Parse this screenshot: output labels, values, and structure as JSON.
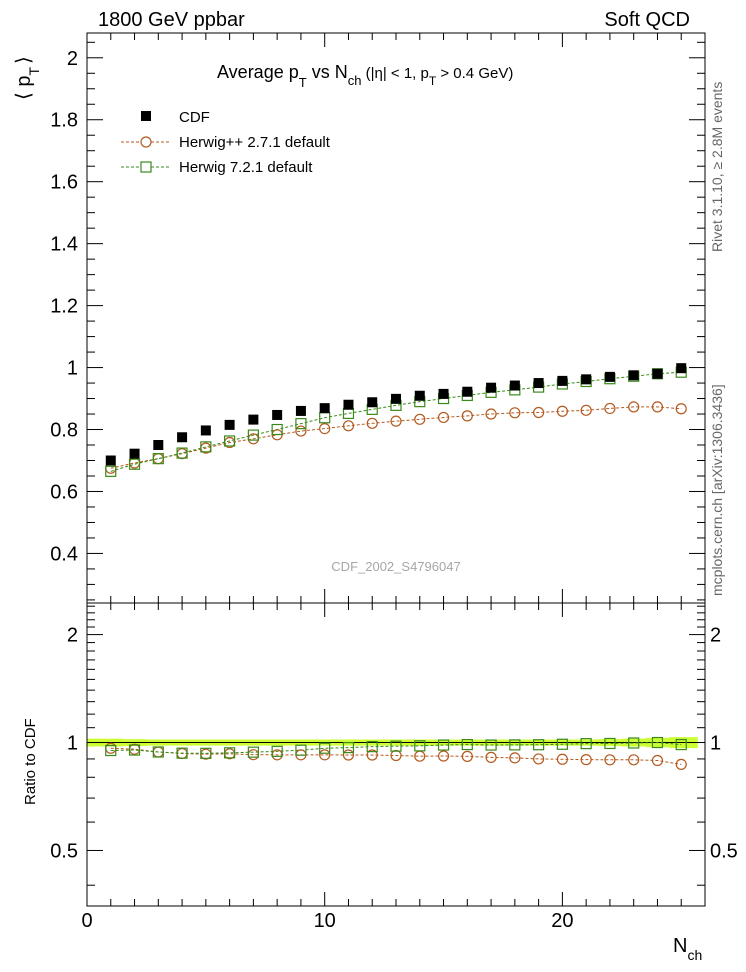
{
  "header": {
    "left": "1800 GeV ppbar",
    "right": "Soft QCD"
  },
  "side_labels": {
    "rivet": "Rivet 3.1.10, ≥ 2.8M events",
    "mcplots": "mcplots.cern.ch [arXiv:1306.3436]"
  },
  "colors": {
    "cdf": "#000000",
    "herwigpp": "#b35a1f",
    "herwig7": "#3a8a1a",
    "band": "#ccff33"
  },
  "chart_data": [
    {
      "type": "scatter",
      "title": "Average p T vs N ch (|η| < 1, p T > 0.4 GeV)",
      "title_parts": {
        "main": "Average p",
        "sub1": "T",
        "vs": " vs N",
        "sub2": "ch",
        "rest1": " (|η| < 1, p",
        "sub3": "T",
        "rest2": " > 0.4 GeV)"
      },
      "ylabel": "⟨ p T ⟩",
      "ylabel_parts": {
        "lang": "⟨ p",
        "sub": "T",
        "rang": "⟩"
      },
      "watermark": "CDF_2002_S4796047",
      "xlim": [
        0,
        26
      ],
      "ylim": [
        0.24,
        2.08
      ],
      "yticks": [
        0.4,
        0.6,
        0.8,
        1.0,
        1.2,
        1.4,
        1.6,
        1.8,
        2.0
      ],
      "ytick_labels": [
        "0.4",
        "0.6",
        "0.8",
        "1",
        "1.2",
        "1.4",
        "1.6",
        "1.8",
        "2"
      ],
      "x": [
        1,
        2,
        3,
        4,
        5,
        6,
        7,
        8,
        9,
        10,
        11,
        12,
        13,
        14,
        15,
        16,
        17,
        18,
        19,
        20,
        21,
        22,
        23,
        24,
        25
      ],
      "series": [
        {
          "name": "CDF",
          "marker": "filled-square",
          "values": [
            0.7,
            0.722,
            0.75,
            0.775,
            0.797,
            0.815,
            0.832,
            0.847,
            0.86,
            0.869,
            0.88,
            0.888,
            0.899,
            0.909,
            0.915,
            0.922,
            0.935,
            0.942,
            0.95,
            0.957,
            0.962,
            0.97,
            0.975,
            0.98,
            0.998
          ]
        },
        {
          "name": "Herwig++ 2.7.1 default",
          "marker": "open-circle",
          "values": [
            0.675,
            0.692,
            0.706,
            0.722,
            0.74,
            0.758,
            0.77,
            0.783,
            0.795,
            0.803,
            0.812,
            0.82,
            0.827,
            0.833,
            0.839,
            0.844,
            0.85,
            0.854,
            0.855,
            0.859,
            0.862,
            0.868,
            0.873,
            0.873,
            0.867
          ]
        },
        {
          "name": "Herwig 7.2.1 default",
          "marker": "open-square",
          "values": [
            0.665,
            0.688,
            0.706,
            0.724,
            0.744,
            0.763,
            0.782,
            0.8,
            0.819,
            0.838,
            0.852,
            0.865,
            0.878,
            0.89,
            0.9,
            0.91,
            0.92,
            0.928,
            0.937,
            0.947,
            0.955,
            0.964,
            0.972,
            0.98,
            0.985
          ]
        }
      ]
    },
    {
      "type": "scatter",
      "ylabel": "Ratio to CDF",
      "xlabel": "N ch",
      "xlabel_parts": {
        "main": "N",
        "sub": "ch"
      },
      "xlim": [
        0,
        26
      ],
      "ylim": [
        0.35,
        2.45
      ],
      "ylog": true,
      "xticks": [
        0,
        10,
        20
      ],
      "xtick_labels": [
        "0",
        "10",
        "20"
      ],
      "yticks": [
        0.5,
        1,
        2
      ],
      "ytick_labels": [
        "0.5",
        "1",
        "2"
      ],
      "x": [
        1,
        2,
        3,
        4,
        5,
        6,
        7,
        8,
        9,
        10,
        11,
        12,
        13,
        14,
        15,
        16,
        17,
        18,
        19,
        20,
        21,
        22,
        23,
        24,
        25
      ],
      "band_halfwidth": [
        0.025,
        0.022,
        0.02,
        0.02,
        0.02,
        0.02,
        0.02,
        0.02,
        0.02,
        0.02,
        0.02,
        0.02,
        0.02,
        0.02,
        0.02,
        0.02,
        0.02,
        0.02,
        0.02,
        0.02,
        0.02,
        0.022,
        0.025,
        0.03,
        0.035
      ],
      "series": [
        {
          "name": "Herwig++ 2.7.1 default",
          "marker": "open-circle",
          "values": [
            0.964,
            0.958,
            0.941,
            0.932,
            0.928,
            0.93,
            0.925,
            0.924,
            0.924,
            0.924,
            0.923,
            0.923,
            0.92,
            0.916,
            0.917,
            0.915,
            0.909,
            0.906,
            0.9,
            0.898,
            0.896,
            0.895,
            0.895,
            0.891,
            0.869
          ]
        },
        {
          "name": "Herwig 7.2.1 default",
          "marker": "open-square",
          "values": [
            0.95,
            0.953,
            0.941,
            0.934,
            0.933,
            0.936,
            0.94,
            0.945,
            0.952,
            0.964,
            0.968,
            0.974,
            0.977,
            0.979,
            0.984,
            0.987,
            0.984,
            0.985,
            0.986,
            0.989,
            0.993,
            0.994,
            0.997,
            1.0,
            0.987
          ]
        }
      ]
    }
  ]
}
